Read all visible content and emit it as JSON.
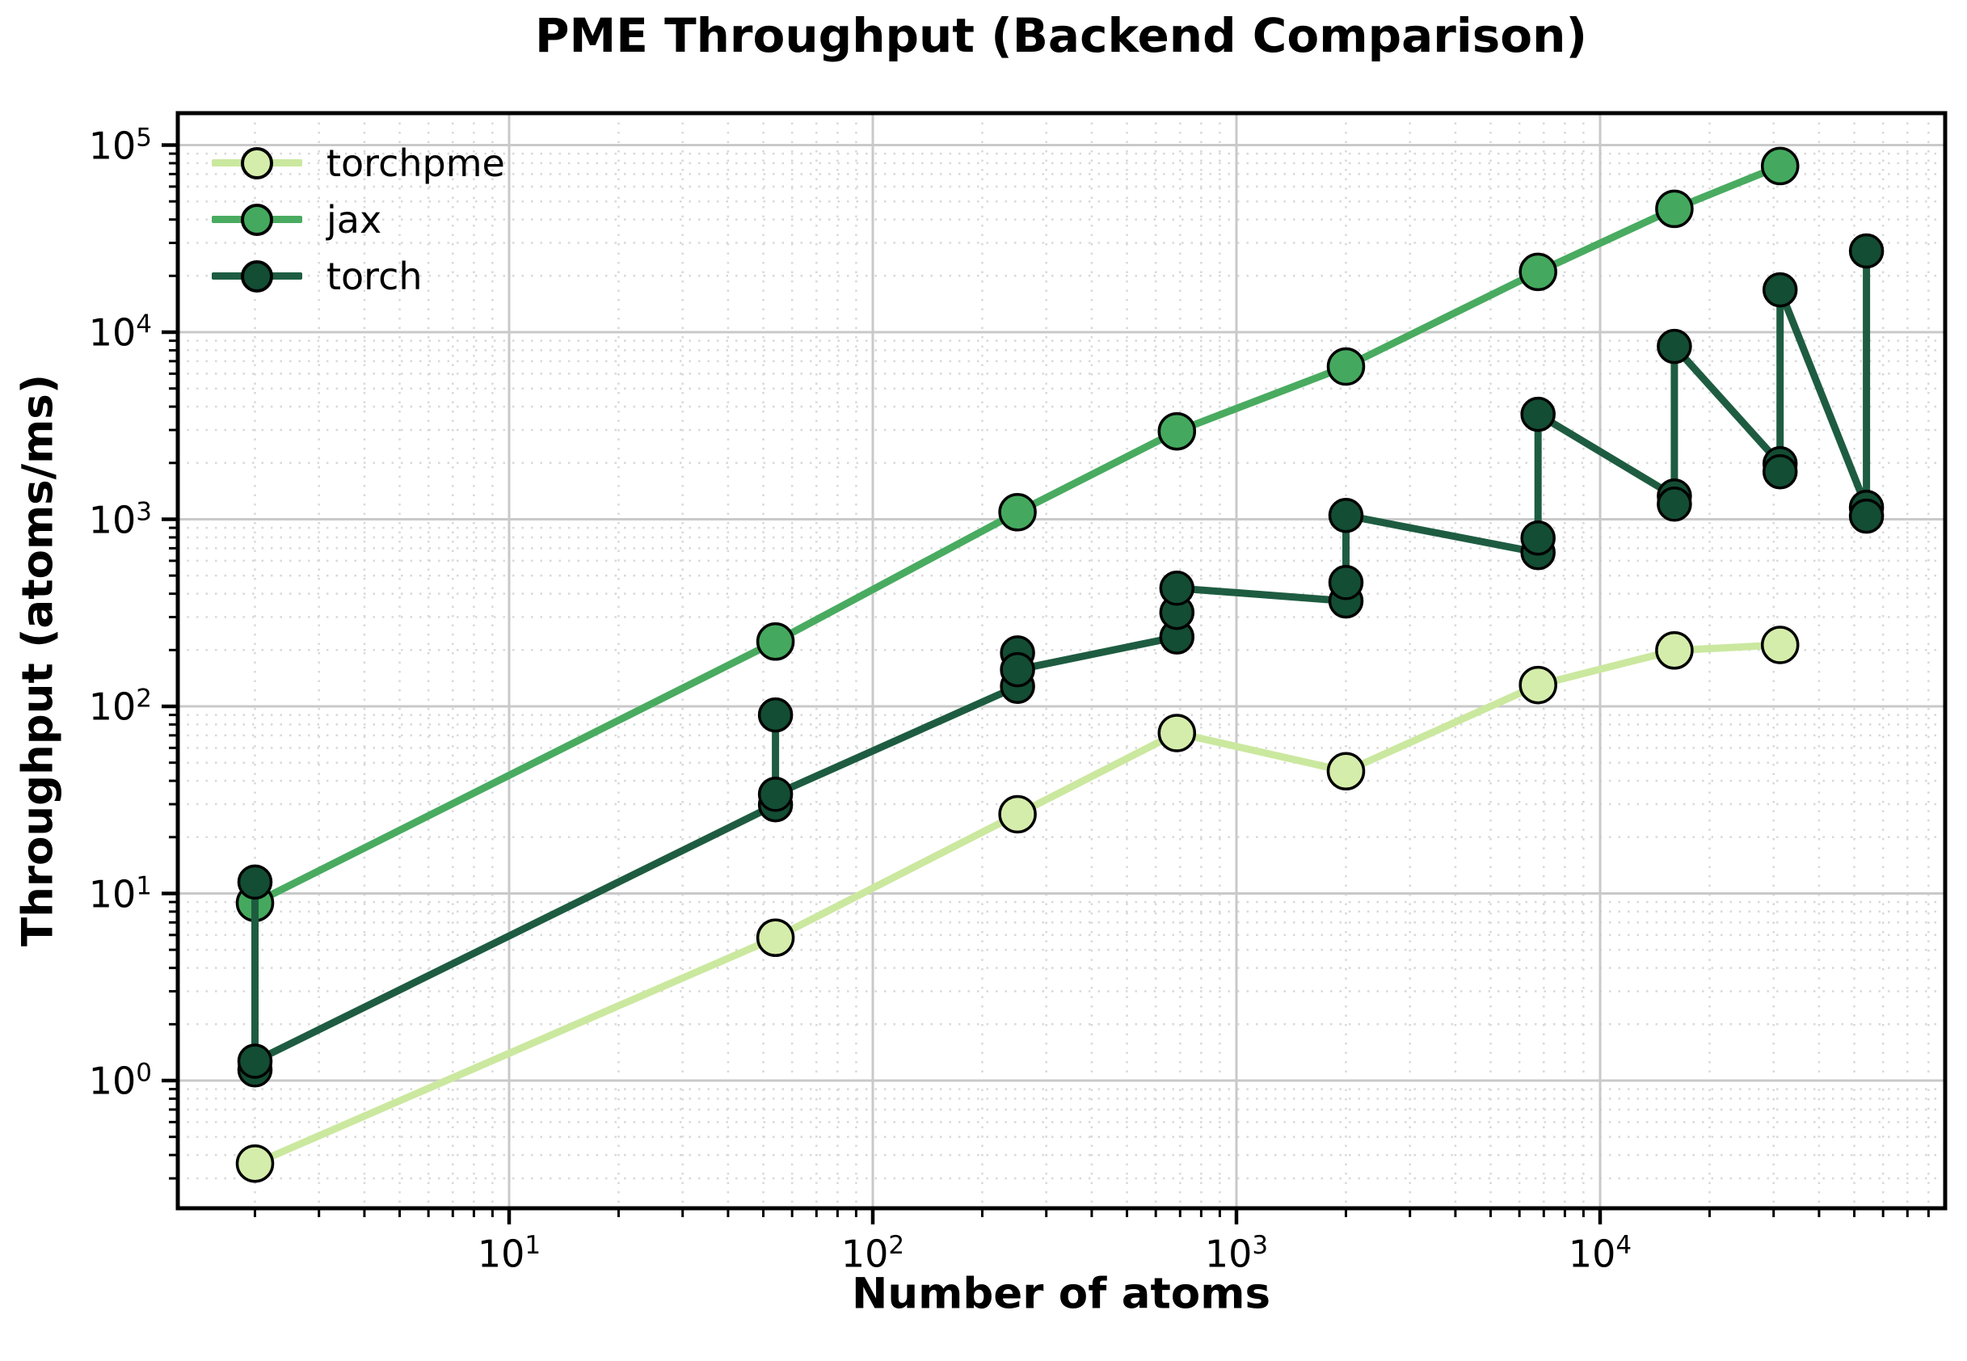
{
  "chart_data": {
    "type": "line",
    "title": "PME Throughput (Backend Comparison)",
    "xlabel": "Number of atoms",
    "ylabel": "Throughput (atoms/ms)",
    "x_scale": "log",
    "y_scale": "log",
    "x_range": [
      1.2,
      90000
    ],
    "y_range": [
      0.2,
      143000
    ],
    "x_major_tick_exponents": [
      1,
      2,
      3,
      4
    ],
    "y_major_tick_exponents": [
      0,
      1,
      2,
      3,
      4,
      5
    ],
    "grid": "major-solid-minor-dotted",
    "legend_position": "upper-left-inside-frameless",
    "colors": {
      "spine": "#000000",
      "grid_major": "#c9c9c9",
      "grid_minor": "#d8d8d8",
      "marker_edge": "#000000"
    },
    "series": [
      {
        "name": "torchpme",
        "color": "#cbe89f",
        "marker_color": "#d5edab",
        "marker_size": 22,
        "points": [
          [
            2,
            0.36
          ],
          [
            54,
            5.8
          ],
          [
            250,
            26.5
          ],
          [
            686,
            72
          ],
          [
            2000,
            45
          ],
          [
            6750,
            130
          ],
          [
            16000,
            199
          ],
          [
            31250,
            213
          ]
        ]
      },
      {
        "name": "jax",
        "color": "#49ab60",
        "marker_color": "#44a95e",
        "marker_size": 22,
        "points": [
          [
            2,
            8.9
          ],
          [
            54,
            222
          ],
          [
            250,
            1090
          ],
          [
            686,
            2950
          ],
          [
            2000,
            6550
          ],
          [
            6750,
            21000
          ],
          [
            16000,
            45600
          ],
          [
            31250,
            77300
          ]
        ]
      },
      {
        "name": "torch",
        "color": "#1e5c41",
        "marker_color": "#134d33",
        "marker_size": 20,
        "points": [
          [
            2,
            11.5
          ],
          [
            2,
            1.14
          ],
          [
            2,
            1.27
          ],
          [
            54,
            29.8
          ],
          [
            54,
            90
          ],
          [
            54,
            33.9
          ],
          [
            250,
            128
          ],
          [
            250,
            193
          ],
          [
            250,
            157
          ],
          [
            686,
            235
          ],
          [
            686,
            318
          ],
          [
            686,
            428
          ],
          [
            2000,
            366
          ],
          [
            2000,
            459
          ],
          [
            2000,
            1049
          ],
          [
            6750,
            664
          ],
          [
            6750,
            794
          ],
          [
            6750,
            3640
          ],
          [
            16000,
            1331
          ],
          [
            16000,
            1205
          ],
          [
            16000,
            8390
          ],
          [
            31250,
            1982
          ],
          [
            31250,
            1795
          ],
          [
            31250,
            16840
          ],
          [
            54000,
            1159
          ],
          [
            54000,
            1040
          ],
          [
            54000,
            27160
          ]
        ]
      }
    ]
  }
}
